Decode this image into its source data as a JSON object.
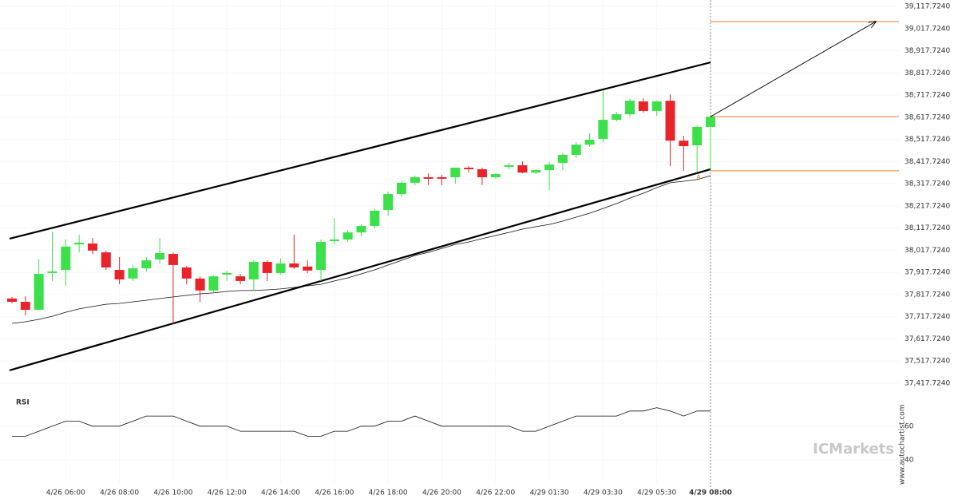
{
  "chart_data": {
    "type": "candlestick",
    "categories": [
      null,
      null,
      null,
      null,
      "4/26 06:00",
      null,
      null,
      null,
      "4/26 08:00",
      null,
      null,
      null,
      "4/26 10:00",
      null,
      null,
      null,
      "4/26 12:00",
      null,
      null,
      null,
      "4/26 14:00",
      null,
      null,
      null,
      "4/26 16:00",
      null,
      null,
      null,
      "4/26 18:00",
      null,
      null,
      null,
      "4/26 20:00",
      null,
      null,
      null,
      "4/26 22:00",
      null,
      null,
      null,
      "4/29 01:30",
      null,
      null,
      null,
      "4/29 03:30",
      null,
      null,
      null,
      "4/29 05:30",
      null,
      null,
      null,
      "4/29 08:00"
    ],
    "open": [
      37800,
      37785,
      37749,
      37915,
      37929,
      38044,
      38048,
      38008,
      37929,
      37890,
      37936,
      37976,
      38001,
      37940,
      37890,
      37836,
      37908,
      37900,
      37886,
      37965,
      37915,
      37958,
      37944,
      37929,
      38059,
      38066,
      38098,
      38127,
      38199,
      38271,
      38322,
      38347,
      38347,
      38347,
      38390,
      38383,
      38347,
      38394,
      38401,
      38368,
      38379,
      38412,
      38448,
      38494,
      38520,
      38606,
      38631,
      38689,
      38646,
      38692,
      38512,
      38491,
      38574
    ],
    "high": [
      37807,
      37810,
      37976,
      38102,
      38066,
      38088,
      38073,
      38016,
      37987,
      37951,
      37987,
      38073,
      38008,
      37947,
      37900,
      37904,
      37926,
      37911,
      37972,
      37972,
      37980,
      38088,
      37972,
      38066,
      38163,
      38109,
      38134,
      38206,
      38282,
      38332,
      38354,
      38365,
      38358,
      38390,
      38397,
      38390,
      38365,
      38412,
      38419,
      38383,
      38415,
      38458,
      38505,
      38545,
      38739,
      38642,
      38700,
      38703,
      38692,
      38721,
      38534,
      38581,
      38628
    ],
    "low": [
      37778,
      37724,
      37749,
      37879,
      37857,
      38008,
      38001,
      37929,
      37864,
      37879,
      37922,
      37958,
      37684,
      37864,
      37785,
      37828,
      37879,
      37864,
      37836,
      37879,
      37908,
      37933,
      37915,
      37879,
      38044,
      38055,
      38080,
      38116,
      38174,
      38260,
      38311,
      38311,
      38311,
      38318,
      38368,
      38311,
      38340,
      38383,
      38365,
      38361,
      38289,
      38379,
      38433,
      38484,
      38505,
      38599,
      38620,
      38638,
      38624,
      38397,
      38376,
      38372,
      38376
    ],
    "close": [
      37785,
      37749,
      37911,
      37922,
      38034,
      38052,
      38016,
      37940,
      37886,
      37936,
      37972,
      38005,
      37951,
      37890,
      37836,
      37900,
      37915,
      37879,
      37965,
      37915,
      37958,
      37940,
      37926,
      38055,
      38066,
      38098,
      38127,
      38196,
      38271,
      38322,
      38347,
      38340,
      38340,
      38390,
      38383,
      38347,
      38361,
      38401,
      38368,
      38379,
      38404,
      38448,
      38494,
      38516,
      38606,
      38631,
      38692,
      38646,
      38689,
      38512,
      38487,
      38574,
      38620
    ],
    "up_color": "#3ce04a",
    "down_color": "#e8242a",
    "ylim": [
      37388.9,
      39146.5
    ],
    "yticks": [
      {
        "value": 37417.724,
        "label": "37,417.7240"
      },
      {
        "value": 37517.724,
        "label": "37,517.7240"
      },
      {
        "value": 37617.724,
        "label": "37,617.7240"
      },
      {
        "value": 37717.724,
        "label": "37,717.7240"
      },
      {
        "value": 37817.724,
        "label": "37,817.7240"
      },
      {
        "value": 37917.724,
        "label": "37,917.7240"
      },
      {
        "value": 38017.724,
        "label": "38,017.7240"
      },
      {
        "value": 38117.724,
        "label": "38,117.7240"
      },
      {
        "value": 38217.724,
        "label": "38,217.7240"
      },
      {
        "value": 38317.724,
        "label": "38,317.7240"
      },
      {
        "value": 38417.724,
        "label": "38,417.7240"
      },
      {
        "value": 38517.724,
        "label": "38,517.7240"
      },
      {
        "value": 38617.724,
        "label": "38,617.7240"
      },
      {
        "value": 38717.724,
        "label": "38,717.7240"
      },
      {
        "value": 38817.724,
        "label": "38,817.7240"
      },
      {
        "value": 38917.724,
        "label": "38,917.7240"
      },
      {
        "value": 39017.724,
        "label": "39,017.7240"
      },
      {
        "value": 39117.724,
        "label": "39,117.7240"
      }
    ],
    "ma": {
      "color": "#111111",
      "values": [
        37688,
        37695,
        37706,
        37720,
        37738,
        37753,
        37764,
        37774,
        37778,
        37785,
        37792,
        37800,
        37807,
        37814,
        37821,
        37825,
        37832,
        37836,
        37836,
        37839,
        37843,
        37850,
        37857,
        37864,
        37879,
        37893,
        37911,
        37929,
        37951,
        37972,
        37994,
        38008,
        38026,
        38044,
        38055,
        38070,
        38084,
        38098,
        38113,
        38124,
        38134,
        38149,
        38167,
        38185,
        38206,
        38228,
        38253,
        38275,
        38300,
        38322,
        38329,
        38336,
        38354
      ]
    },
    "channel": {
      "color": "#000000",
      "upper": [
        38070,
        38865
      ],
      "lower": [
        37476,
        38383
      ]
    },
    "levels": {
      "color": "#f07a2a",
      "values": [
        39049,
        38620,
        38376
      ]
    },
    "marker": "A",
    "rsi": {
      "label": "RSI",
      "color": "#111111",
      "values": [
        54,
        54,
        57,
        60,
        63,
        63,
        60,
        60,
        60,
        63,
        66,
        66,
        66,
        63,
        60,
        60,
        60,
        57,
        57,
        57,
        57,
        57,
        54,
        54,
        57,
        57,
        60,
        60,
        63,
        63,
        66,
        63,
        60,
        60,
        60,
        60,
        60,
        60,
        57,
        57,
        60,
        63,
        66,
        66,
        66,
        66,
        69,
        69,
        71,
        69,
        66,
        69,
        69
      ],
      "ylim": [
        29,
        77
      ],
      "yticks": [
        40,
        60
      ]
    },
    "watermark": "ICMarkets",
    "source": "www.autochartist.com"
  }
}
